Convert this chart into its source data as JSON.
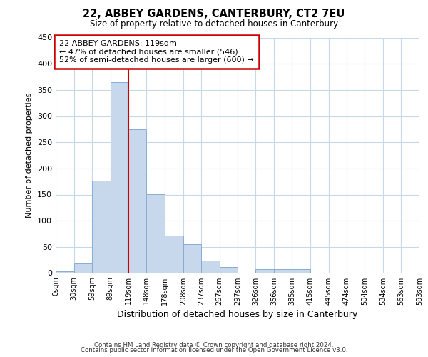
{
  "title": "22, ABBEY GARDENS, CANTERBURY, CT2 7EU",
  "subtitle": "Size of property relative to detached houses in Canterbury",
  "xlabel": "Distribution of detached houses by size in Canterbury",
  "ylabel": "Number of detached properties",
  "bar_color": "#c8d8ec",
  "bar_edge_color": "#8aadd4",
  "vline_x": 119,
  "vline_color": "#cc0000",
  "annotation_title": "22 ABBEY GARDENS: 119sqm",
  "annotation_line1": "← 47% of detached houses are smaller (546)",
  "annotation_line2": "52% of semi-detached houses are larger (600) →",
  "annotation_box_color": "#cc0000",
  "bin_edges": [
    0,
    30,
    59,
    89,
    119,
    148,
    178,
    208,
    237,
    267,
    297,
    326,
    356,
    385,
    415,
    445,
    474,
    504,
    534,
    563,
    593
  ],
  "bin_counts": [
    3,
    19,
    176,
    365,
    275,
    151,
    71,
    55,
    24,
    11,
    1,
    7,
    7,
    7,
    1,
    1,
    0,
    1,
    0,
    1
  ],
  "ylim": [
    0,
    450
  ],
  "yticks": [
    0,
    50,
    100,
    150,
    200,
    250,
    300,
    350,
    400,
    450
  ],
  "tick_labels": [
    "0sqm",
    "30sqm",
    "59sqm",
    "89sqm",
    "119sqm",
    "148sqm",
    "178sqm",
    "208sqm",
    "237sqm",
    "267sqm",
    "297sqm",
    "326sqm",
    "356sqm",
    "385sqm",
    "415sqm",
    "445sqm",
    "474sqm",
    "504sqm",
    "534sqm",
    "563sqm",
    "593sqm"
  ],
  "footer1": "Contains HM Land Registry data © Crown copyright and database right 2024.",
  "footer2": "Contains public sector information licensed under the Open Government Licence v3.0.",
  "bg_color": "#ffffff",
  "grid_color": "#c8d8ec"
}
